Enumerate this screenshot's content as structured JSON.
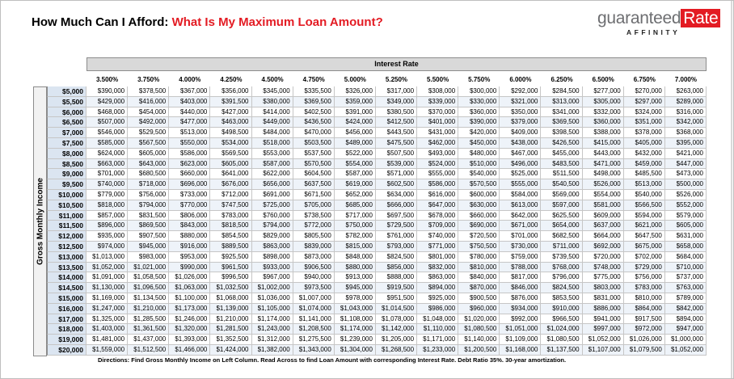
{
  "header": {
    "title_lead": "How Much Can I Afford:",
    "title_highlight": "What Is My Maximum Loan Amount?",
    "logo_main": "guaranteed",
    "logo_box": "Rate",
    "logo_sub": "AFFINITY"
  },
  "table": {
    "column_group": "Interest Rate",
    "row_axis": "Gross Monthly Income",
    "columns": [
      "3.500%",
      "3.750%",
      "4.000%",
      "4.250%",
      "4.500%",
      "4.750%",
      "5.000%",
      "5.250%",
      "5.500%",
      "5.750%",
      "6.000%",
      "6.250%",
      "6.500%",
      "6.750%",
      "7.000%"
    ],
    "rows": [
      {
        "income": "$5,000",
        "amounts": [
          "$390,000",
          "$378,500",
          "$367,000",
          "$356,000",
          "$345,000",
          "$335,500",
          "$326,000",
          "$317,000",
          "$308,000",
          "$300,000",
          "$292,000",
          "$284,500",
          "$277,000",
          "$270,000",
          "$263,000"
        ]
      },
      {
        "income": "$5,500",
        "amounts": [
          "$429,000",
          "$416,000",
          "$403,000",
          "$391,500",
          "$380,000",
          "$369,500",
          "$359,000",
          "$349,000",
          "$339,000",
          "$330,000",
          "$321,000",
          "$313,000",
          "$305,000",
          "$297,000",
          "$289,000"
        ]
      },
      {
        "income": "$6,000",
        "amounts": [
          "$468,000",
          "$454,000",
          "$440,000",
          "$427,000",
          "$414,000",
          "$402,500",
          "$391,000",
          "$380,500",
          "$370,000",
          "$360,000",
          "$350,000",
          "$341,000",
          "$332,000",
          "$324,000",
          "$316,000"
        ]
      },
      {
        "income": "$6,500",
        "amounts": [
          "$507,000",
          "$492,000",
          "$477,000",
          "$463,000",
          "$449,000",
          "$436,500",
          "$424,000",
          "$412,500",
          "$401,000",
          "$390,000",
          "$379,000",
          "$369,500",
          "$360,000",
          "$351,000",
          "$342,000"
        ]
      },
      {
        "income": "$7,000",
        "amounts": [
          "$546,000",
          "$529,500",
          "$513,000",
          "$498,500",
          "$484,000",
          "$470,000",
          "$456,000",
          "$443,500",
          "$431,000",
          "$420,000",
          "$409,000",
          "$398,500",
          "$388,000",
          "$378,000",
          "$368,000"
        ]
      },
      {
        "income": "$7,500",
        "amounts": [
          "$585,000",
          "$567,500",
          "$550,000",
          "$534,000",
          "$518,000",
          "$503,500",
          "$489,000",
          "$475,500",
          "$462,000",
          "$450,000",
          "$438,000",
          "$426,500",
          "$415,000",
          "$405,000",
          "$395,000"
        ]
      },
      {
        "income": "$8,000",
        "amounts": [
          "$624,000",
          "$605,000",
          "$586,000",
          "$569,500",
          "$553,000",
          "$537,500",
          "$522,000",
          "$507,500",
          "$493,000",
          "$480,000",
          "$467,000",
          "$455,000",
          "$443,000",
          "$432,000",
          "$421,000"
        ]
      },
      {
        "income": "$8,500",
        "amounts": [
          "$663,000",
          "$643,000",
          "$623,000",
          "$605,000",
          "$587,000",
          "$570,500",
          "$554,000",
          "$539,000",
          "$524,000",
          "$510,000",
          "$496,000",
          "$483,500",
          "$471,000",
          "$459,000",
          "$447,000"
        ]
      },
      {
        "income": "$9,000",
        "amounts": [
          "$701,000",
          "$680,500",
          "$660,000",
          "$641,000",
          "$622,000",
          "$604,500",
          "$587,000",
          "$571,000",
          "$555,000",
          "$540,000",
          "$525,000",
          "$511,500",
          "$498,000",
          "$485,500",
          "$473,000"
        ]
      },
      {
        "income": "$9,500",
        "amounts": [
          "$740,000",
          "$718,000",
          "$696,000",
          "$676,000",
          "$656,000",
          "$637,500",
          "$619,000",
          "$602,500",
          "$586,000",
          "$570,500",
          "$555,000",
          "$540,500",
          "$526,000",
          "$513,000",
          "$500,000"
        ]
      },
      {
        "income": "$10,000",
        "amounts": [
          "$779,000",
          "$756,000",
          "$733,000",
          "$712,000",
          "$691,000",
          "$671,500",
          "$652,000",
          "$634,000",
          "$616,000",
          "$600,000",
          "$584,000",
          "$569,000",
          "$554,000",
          "$540,000",
          "$526,000"
        ]
      },
      {
        "income": "$10,500",
        "amounts": [
          "$818,000",
          "$794,000",
          "$770,000",
          "$747,500",
          "$725,000",
          "$705,000",
          "$685,000",
          "$666,000",
          "$647,000",
          "$630,000",
          "$613,000",
          "$597,000",
          "$581,000",
          "$566,500",
          "$552,000"
        ]
      },
      {
        "income": "$11,000",
        "amounts": [
          "$857,000",
          "$831,500",
          "$806,000",
          "$783,000",
          "$760,000",
          "$738,500",
          "$717,000",
          "$697,500",
          "$678,000",
          "$660,000",
          "$642,000",
          "$625,500",
          "$609,000",
          "$594,000",
          "$579,000"
        ]
      },
      {
        "income": "$11,500",
        "amounts": [
          "$896,000",
          "$869,500",
          "$843,000",
          "$818,500",
          "$794,000",
          "$772,000",
          "$750,000",
          "$729,500",
          "$709,000",
          "$690,000",
          "$671,000",
          "$654,000",
          "$637,000",
          "$621,000",
          "$605,000"
        ]
      },
      {
        "income": "$12,000",
        "amounts": [
          "$935,000",
          "$907,500",
          "$880,000",
          "$854,500",
          "$829,000",
          "$805,500",
          "$782,000",
          "$761,000",
          "$740,000",
          "$720,500",
          "$701,000",
          "$682,500",
          "$664,000",
          "$647,500",
          "$631,000"
        ]
      },
      {
        "income": "$12,500",
        "amounts": [
          "$974,000",
          "$945,000",
          "$916,000",
          "$889,500",
          "$863,000",
          "$839,000",
          "$815,000",
          "$793,000",
          "$771,000",
          "$750,500",
          "$730,000",
          "$711,000",
          "$692,000",
          "$675,000",
          "$658,000"
        ]
      },
      {
        "income": "$13,000",
        "amounts": [
          "$1,013,000",
          "$983,000",
          "$953,000",
          "$925,500",
          "$898,000",
          "$873,000",
          "$848,000",
          "$824,500",
          "$801,000",
          "$780,000",
          "$759,000",
          "$739,500",
          "$720,000",
          "$702,000",
          "$684,000"
        ]
      },
      {
        "income": "$13,500",
        "amounts": [
          "$1,052,000",
          "$1,021,000",
          "$990,000",
          "$961,500",
          "$933,000",
          "$906,500",
          "$880,000",
          "$856,000",
          "$832,000",
          "$810,000",
          "$788,000",
          "$768,000",
          "$748,000",
          "$729,000",
          "$710,000"
        ]
      },
      {
        "income": "$14,000",
        "amounts": [
          "$1,091,000",
          "$1,058,500",
          "$1,026,000",
          "$996,500",
          "$967,000",
          "$940,000",
          "$913,000",
          "$888,000",
          "$863,000",
          "$840,000",
          "$817,000",
          "$796,000",
          "$775,000",
          "$756,000",
          "$737,000"
        ]
      },
      {
        "income": "$14,500",
        "amounts": [
          "$1,130,000",
          "$1,096,500",
          "$1,063,000",
          "$1,032,500",
          "$1,002,000",
          "$973,500",
          "$945,000",
          "$919,500",
          "$894,000",
          "$870,000",
          "$846,000",
          "$824,500",
          "$803,000",
          "$783,000",
          "$763,000"
        ]
      },
      {
        "income": "$15,000",
        "amounts": [
          "$1,169,000",
          "$1,134,500",
          "$1,100,000",
          "$1,068,000",
          "$1,036,000",
          "$1,007,000",
          "$978,000",
          "$951,500",
          "$925,000",
          "$900,500",
          "$876,000",
          "$853,500",
          "$831,000",
          "$810,000",
          "$789,000"
        ]
      },
      {
        "income": "$16,000",
        "amounts": [
          "$1,247,000",
          "$1,210,000",
          "$1,173,000",
          "$1,139,000",
          "$1,105,000",
          "$1,074,000",
          "$1,043,000",
          "$1,014,500",
          "$986,000",
          "$960,000",
          "$934,000",
          "$910,000",
          "$886,000",
          "$864,000",
          "$842,000"
        ]
      },
      {
        "income": "$17,000",
        "amounts": [
          "$1,325,000",
          "$1,285,500",
          "$1,246,000",
          "$1,210,000",
          "$1,174,000",
          "$1,141,000",
          "$1,108,000",
          "$1,078,000",
          "$1,048,000",
          "$1,020,000",
          "$992,000",
          "$966,500",
          "$941,000",
          "$917,500",
          "$894,000"
        ]
      },
      {
        "income": "$18,000",
        "amounts": [
          "$1,403,000",
          "$1,361,500",
          "$1,320,000",
          "$1,281,500",
          "$1,243,000",
          "$1,208,500",
          "$1,174,000",
          "$1,142,000",
          "$1,110,000",
          "$1,080,500",
          "$1,051,000",
          "$1,024,000",
          "$997,000",
          "$972,000",
          "$947,000"
        ]
      },
      {
        "income": "$19,000",
        "amounts": [
          "$1,481,000",
          "$1,437,000",
          "$1,393,000",
          "$1,352,500",
          "$1,312,000",
          "$1,275,500",
          "$1,239,000",
          "$1,205,000",
          "$1,171,000",
          "$1,140,000",
          "$1,109,000",
          "$1,080,500",
          "$1,052,000",
          "$1,026,000",
          "$1,000,000"
        ]
      },
      {
        "income": "$20,000",
        "amounts": [
          "$1,559,000",
          "$1,512,500",
          "$1,466,000",
          "$1,424,000",
          "$1,382,000",
          "$1,343,000",
          "$1,304,000",
          "$1,268,500",
          "$1,233,000",
          "$1,200,500",
          "$1,168,000",
          "$1,137,500",
          "$1,107,000",
          "$1,079,500",
          "$1,052,000"
        ]
      }
    ]
  },
  "footer": {
    "directions": "Directions: Find Gross Monthly Income on Left Column. Read Across to find Loan Amount with corresponding Interest Rate. Debt Ratio 35%. 30-year amortization."
  }
}
